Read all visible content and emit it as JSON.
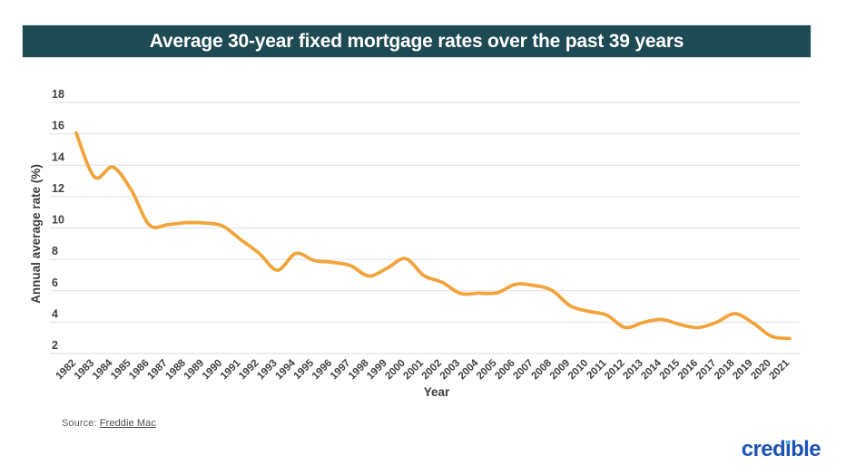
{
  "title": "Average 30-year fixed mortgage rates over the past 39 years",
  "chart_data": {
    "type": "line",
    "title": "Average 30-year fixed mortgage rates over the past 39 years",
    "xlabel": "Year",
    "ylabel": "Annual average rate (%)",
    "x": [
      1982,
      1983,
      1984,
      1985,
      1986,
      1987,
      1988,
      1989,
      1990,
      1991,
      1992,
      1993,
      1994,
      1995,
      1996,
      1997,
      1998,
      1999,
      2000,
      2001,
      2002,
      2003,
      2004,
      2005,
      2006,
      2007,
      2008,
      2009,
      2010,
      2011,
      2012,
      2013,
      2014,
      2015,
      2016,
      2017,
      2018,
      2019,
      2020,
      2021
    ],
    "series": [
      {
        "name": "Annual average 30-year fixed mortgage rate (%)",
        "values": [
          16.04,
          13.24,
          13.88,
          12.43,
          10.19,
          10.21,
          10.34,
          10.32,
          10.13,
          9.25,
          8.39,
          7.31,
          8.38,
          7.93,
          7.81,
          7.6,
          6.94,
          7.44,
          8.05,
          6.97,
          6.54,
          5.83,
          5.84,
          5.87,
          6.41,
          6.34,
          6.03,
          5.04,
          4.69,
          4.45,
          3.66,
          3.98,
          4.17,
          3.85,
          3.65,
          3.99,
          4.54,
          3.94,
          3.1,
          2.96
        ]
      }
    ],
    "ylim": [
      2,
      18
    ],
    "yticks": [
      18,
      16,
      14,
      12,
      10,
      8,
      6,
      4,
      2
    ],
    "grid": true,
    "legend_position": "none",
    "line_color": "#F2A43C",
    "smooth": true
  },
  "source": {
    "label": "Source:",
    "link_text": "Freddie Mac"
  },
  "branding": {
    "logo_text": "credible"
  },
  "colors": {
    "title_bar_bg": "#1E4A54",
    "title_text": "#FFFFFF",
    "line": "#F2A43C",
    "gridline": "#DDDFE2",
    "axis_text": "#404040",
    "logo_blue": "#1D53B5",
    "logo_dot_blue": "#54AEE4"
  }
}
